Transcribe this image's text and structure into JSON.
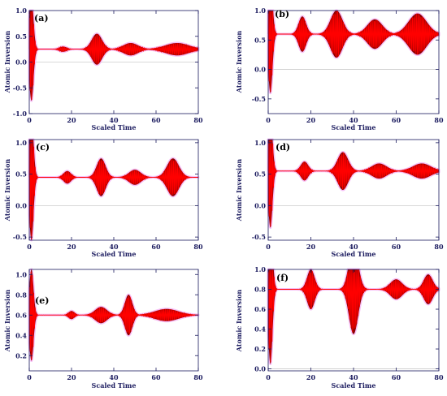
{
  "chart_data": [
    {
      "type": "line",
      "panel_label": "(a)",
      "xlabel": "Scaled Time",
      "ylabel": "Atomic Inversion",
      "xlim": [
        0,
        80
      ],
      "ylim": [
        -1.0,
        1.0
      ],
      "xticks": [
        "0",
        "20",
        "40",
        "60",
        "80"
      ],
      "yticks": [
        "-1.0",
        "-0.5",
        "0.0",
        "0.5",
        "1.0"
      ],
      "baseline": 0.25,
      "envelope": [
        {
          "center": 1,
          "width": 1.4,
          "amplitude": 1.0
        },
        {
          "center": 16,
          "width": 2.5,
          "amplitude": 0.05
        },
        {
          "center": 32,
          "width": 3.5,
          "amplitude": 0.3
        },
        {
          "center": 48,
          "width": 5,
          "amplitude": 0.12
        },
        {
          "center": 70,
          "width": 8,
          "amplitude": 0.12
        }
      ]
    },
    {
      "type": "line",
      "panel_label": "(b)",
      "xlabel": "Scaled Time",
      "ylabel": "Atomic Inversion",
      "xlim": [
        0,
        80
      ],
      "ylim": [
        -0.75,
        1.0
      ],
      "xticks": [
        "0",
        "20",
        "40",
        "60",
        "80"
      ],
      "yticks": [
        "-0.5",
        "0.0",
        "0.5",
        "1.0"
      ],
      "baseline": 0.6,
      "envelope": [
        {
          "center": 1,
          "width": 1.4,
          "amplitude": 1.0
        },
        {
          "center": 16,
          "width": 2.5,
          "amplitude": 0.3
        },
        {
          "center": 32,
          "width": 4,
          "amplitude": 0.4
        },
        {
          "center": 50,
          "width": 5,
          "amplitude": 0.25
        },
        {
          "center": 70,
          "width": 6,
          "amplitude": 0.35
        }
      ]
    },
    {
      "type": "line",
      "panel_label": "(c)",
      "xlabel": "Scaled Time",
      "ylabel": "Atomic Inversion",
      "xlim": [
        0,
        80
      ],
      "ylim": [
        -0.55,
        1.05
      ],
      "xticks": [
        "0",
        "20",
        "40",
        "60",
        "80"
      ],
      "yticks": [
        "-0.5",
        "0.0",
        "0.5",
        "1.0"
      ],
      "baseline": 0.45,
      "envelope": [
        {
          "center": 1,
          "width": 1.4,
          "amplitude": 1.0
        },
        {
          "center": 18,
          "width": 2.5,
          "amplitude": 0.1
        },
        {
          "center": 34,
          "width": 3,
          "amplitude": 0.3
        },
        {
          "center": 50,
          "width": 4,
          "amplitude": 0.12
        },
        {
          "center": 68,
          "width": 4,
          "amplitude": 0.3
        }
      ]
    },
    {
      "type": "line",
      "panel_label": "(d)",
      "xlabel": "Scaled Time",
      "ylabel": "Atomic Inversion",
      "xlim": [
        0,
        80
      ],
      "ylim": [
        -0.55,
        1.05
      ],
      "xticks": [
        "0",
        "20",
        "40",
        "60",
        "80"
      ],
      "yticks": [
        "-0.5",
        "0.0",
        "0.5",
        "1.0"
      ],
      "baseline": 0.55,
      "envelope": [
        {
          "center": 1,
          "width": 1.4,
          "amplitude": 0.9
        },
        {
          "center": 17,
          "width": 2.5,
          "amplitude": 0.15
        },
        {
          "center": 35,
          "width": 3.5,
          "amplitude": 0.3
        },
        {
          "center": 52,
          "width": 5,
          "amplitude": 0.12
        },
        {
          "center": 72,
          "width": 6,
          "amplitude": 0.12
        }
      ]
    },
    {
      "type": "line",
      "panel_label": "(e)",
      "xlabel": "Scaled Time",
      "ylabel": "Atomic Inversion",
      "xlim": [
        0,
        80
      ],
      "ylim": [
        0.05,
        1.05
      ],
      "xticks": [
        "0",
        "20",
        "40",
        "60",
        "80"
      ],
      "yticks": [
        "0.2",
        "0.4",
        "0.6",
        "0.8",
        "1.0"
      ],
      "baseline": 0.6,
      "envelope": [
        {
          "center": 1,
          "width": 1.4,
          "amplitude": 0.45
        },
        {
          "center": 20,
          "width": 2,
          "amplitude": 0.04
        },
        {
          "center": 34,
          "width": 4,
          "amplitude": 0.08
        },
        {
          "center": 47,
          "width": 2.5,
          "amplitude": 0.2
        },
        {
          "center": 65,
          "width": 8,
          "amplitude": 0.06
        }
      ]
    },
    {
      "type": "line",
      "panel_label": "(f)",
      "xlabel": "Scaled Time",
      "ylabel": "Atomic Inversion",
      "xlim": [
        0,
        80
      ],
      "ylim": [
        -0.02,
        1.0
      ],
      "xticks": [
        "0",
        "20",
        "40",
        "60",
        "80"
      ],
      "yticks": [
        "0.0",
        "0.2",
        "0.4",
        "0.6",
        "0.8",
        "1.0"
      ],
      "baseline": 0.8,
      "envelope": [
        {
          "center": 1,
          "width": 1.4,
          "amplitude": 0.75
        },
        {
          "center": 20,
          "width": 2.5,
          "amplitude": 0.2
        },
        {
          "center": 40,
          "width": 3,
          "amplitude": 0.45
        },
        {
          "center": 60,
          "width": 4,
          "amplitude": 0.1
        },
        {
          "center": 75,
          "width": 3,
          "amplitude": 0.15
        }
      ]
    }
  ],
  "colors": {
    "curve": "#ff0000",
    "envelope_edge": "#8a0000",
    "halo": "#f4aaf4",
    "axis": "#1a1a5e",
    "zero_line": "#cccccc"
  }
}
